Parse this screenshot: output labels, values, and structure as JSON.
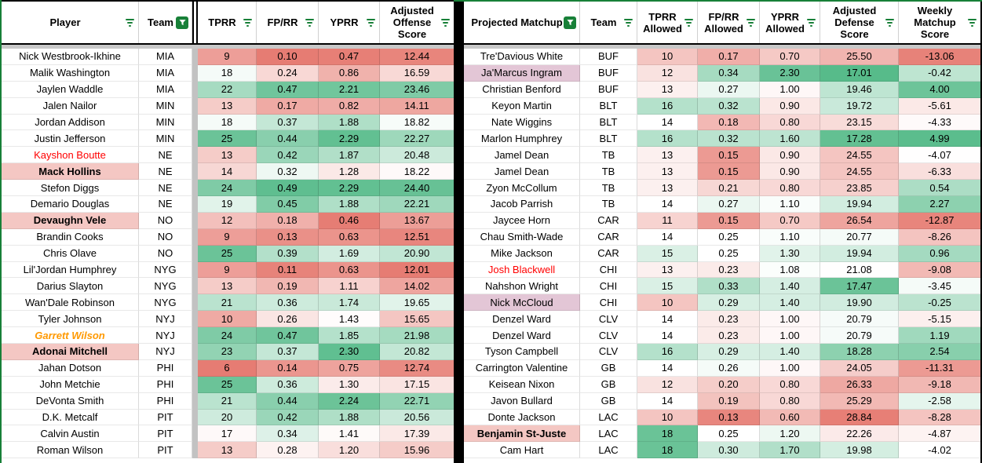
{
  "colors": {
    "scale_red": "#e67c73",
    "scale_white": "#ffffff",
    "scale_green": "#57bb8a",
    "highlight_pink": "#f4c7c3",
    "highlight_mauve": "#e3c6d6",
    "name_red_text": "#ff0000",
    "name_orange_text": "#ff9900",
    "filter_green": "#188038"
  },
  "left_table": {
    "columns": [
      {
        "label": "Player",
        "filter": "lines"
      },
      {
        "label": "Team",
        "filter": "active"
      },
      {
        "label": "TPRR",
        "filter": "lines"
      },
      {
        "label": "FP/RR",
        "filter": "lines"
      },
      {
        "label": "YPRR",
        "filter": "lines"
      },
      {
        "label": "Adjusted Offense Score",
        "filter": "lines"
      }
    ],
    "scales": {
      "tprr": {
        "min": 6,
        "mid": 17.5,
        "max": 26
      },
      "fprr": {
        "min": 0.1,
        "mid": 0.3,
        "max": 0.5
      },
      "yprr": {
        "min": 0.45,
        "mid": 1.45,
        "max": 2.35
      },
      "adj": {
        "min": 12,
        "mid": 18.5,
        "max": 25
      }
    },
    "rows": [
      {
        "player": "Nick Westbrook-Ikhine",
        "style": "",
        "team": "MIA",
        "tprr": "9",
        "fprr": "0.10",
        "yprr": "0.47",
        "adj": "12.44"
      },
      {
        "player": "Malik Washington",
        "style": "",
        "team": "MIA",
        "tprr": "18",
        "fprr": "0.24",
        "yprr": "0.86",
        "adj": "16.59"
      },
      {
        "player": "Jaylen Waddle",
        "style": "",
        "team": "MIA",
        "tprr": "22",
        "fprr": "0.47",
        "yprr": "2.21",
        "adj": "23.46"
      },
      {
        "player": "Jalen Nailor",
        "style": "",
        "team": "MIN",
        "tprr": "13",
        "fprr": "0.17",
        "yprr": "0.82",
        "adj": "14.11"
      },
      {
        "player": "Jordan Addison",
        "style": "",
        "team": "MIN",
        "tprr": "18",
        "fprr": "0.37",
        "yprr": "1.88",
        "adj": "18.82"
      },
      {
        "player": "Justin Jefferson",
        "style": "",
        "team": "MIN",
        "tprr": "25",
        "fprr": "0.44",
        "yprr": "2.29",
        "adj": "22.27"
      },
      {
        "player": "Kayshon Boutte",
        "style": "red",
        "team": "NE",
        "tprr": "13",
        "fprr": "0.42",
        "yprr": "1.87",
        "adj": "20.48"
      },
      {
        "player": "Mack Hollins",
        "style": "pink",
        "team": "NE",
        "tprr": "14",
        "fprr": "0.32",
        "yprr": "1.28",
        "adj": "18.22"
      },
      {
        "player": "Stefon Diggs",
        "style": "",
        "team": "NE",
        "tprr": "24",
        "fprr": "0.49",
        "yprr": "2.29",
        "adj": "24.40"
      },
      {
        "player": "Demario Douglas",
        "style": "",
        "team": "NE",
        "tprr": "19",
        "fprr": "0.45",
        "yprr": "1.88",
        "adj": "22.21"
      },
      {
        "player": "Devaughn Vele",
        "style": "pink",
        "team": "NO",
        "tprr": "12",
        "fprr": "0.18",
        "yprr": "0.46",
        "adj": "13.67"
      },
      {
        "player": "Brandin Cooks",
        "style": "",
        "team": "NO",
        "tprr": "9",
        "fprr": "0.13",
        "yprr": "0.63",
        "adj": "12.51"
      },
      {
        "player": "Chris Olave",
        "style": "",
        "team": "NO",
        "tprr": "25",
        "fprr": "0.39",
        "yprr": "1.69",
        "adj": "20.90"
      },
      {
        "player": "Lil'Jordan Humphrey",
        "style": "",
        "team": "NYG",
        "tprr": "9",
        "fprr": "0.11",
        "yprr": "0.63",
        "adj": "12.01"
      },
      {
        "player": "Darius Slayton",
        "style": "",
        "team": "NYG",
        "tprr": "13",
        "fprr": "0.19",
        "yprr": "1.11",
        "adj": "14.02"
      },
      {
        "player": "Wan'Dale Robinson",
        "style": "",
        "team": "NYG",
        "tprr": "21",
        "fprr": "0.36",
        "yprr": "1.74",
        "adj": "19.65"
      },
      {
        "player": "Tyler Johnson",
        "style": "",
        "team": "NYJ",
        "tprr": "10",
        "fprr": "0.26",
        "yprr": "1.43",
        "adj": "15.65"
      },
      {
        "player": "Garrett Wilson",
        "style": "orange",
        "team": "NYJ",
        "tprr": "24",
        "fprr": "0.47",
        "yprr": "1.85",
        "adj": "21.98"
      },
      {
        "player": "Adonai Mitchell",
        "style": "pink",
        "team": "NYJ",
        "tprr": "23",
        "fprr": "0.37",
        "yprr": "2.30",
        "adj": "20.82"
      },
      {
        "player": "Jahan Dotson",
        "style": "",
        "team": "PHI",
        "tprr": "6",
        "fprr": "0.14",
        "yprr": "0.75",
        "adj": "12.74"
      },
      {
        "player": "John Metchie",
        "style": "",
        "team": "PHI",
        "tprr": "25",
        "fprr": "0.36",
        "yprr": "1.30",
        "adj": "17.15"
      },
      {
        "player": "DeVonta Smith",
        "style": "",
        "team": "PHI",
        "tprr": "21",
        "fprr": "0.44",
        "yprr": "2.24",
        "adj": "22.71"
      },
      {
        "player": "D.K. Metcalf",
        "style": "",
        "team": "PIT",
        "tprr": "20",
        "fprr": "0.42",
        "yprr": "1.88",
        "adj": "20.56"
      },
      {
        "player": "Calvin Austin",
        "style": "",
        "team": "PIT",
        "tprr": "17",
        "fprr": "0.34",
        "yprr": "1.41",
        "adj": "17.39"
      },
      {
        "player": "Roman Wilson",
        "style": "",
        "team": "PIT",
        "tprr": "13",
        "fprr": "0.28",
        "yprr": "1.20",
        "adj": "15.96"
      }
    ],
    "partial_row_colors": [
      "#ffffff",
      "#ffffff",
      "#f6cfcb",
      "#e3f2ea",
      "#f8dcd9",
      "#f7d4d0"
    ]
  },
  "right_table": {
    "columns": [
      {
        "label": "Projected Matchup",
        "filter": "active"
      },
      {
        "label": "Team",
        "filter": "lines"
      },
      {
        "label": "TPRR Allowed",
        "filter": "lines"
      },
      {
        "label": "FP/RR Allowed",
        "filter": "lines"
      },
      {
        "label": "YPRR Allowed",
        "filter": "lines"
      },
      {
        "label": "Adjusted Defense Score",
        "filter": "lines"
      },
      {
        "label": "Weekly Matchup Score",
        "filter": "lines"
      }
    ],
    "scales": {
      "tprr": {
        "min": 5,
        "mid": 14,
        "max": 18.5
      },
      "fprr": {
        "min": 0.12,
        "mid": 0.25,
        "max": 0.42
      },
      "yprr": {
        "min": 0.2,
        "mid": 1.05,
        "max": 2.45
      },
      "adj": {
        "min": 17,
        "mid": 21,
        "max": 29,
        "invert": true
      },
      "weekly": {
        "min": -13.5,
        "mid": -4,
        "max": 5.2
      }
    },
    "rows": [
      {
        "player": "Tre'Davious White",
        "style": "",
        "team": "BUF",
        "tprr": "10",
        "fprr": "0.17",
        "yprr": "0.70",
        "adj": "25.50",
        "weekly": "-13.06"
      },
      {
        "player": "Ja'Marcus Ingram",
        "style": "mauve",
        "team": "BUF",
        "tprr": "12",
        "fprr": "0.34",
        "yprr": "2.30",
        "adj": "17.01",
        "weekly": "-0.42"
      },
      {
        "player": "Christian Benford",
        "style": "",
        "team": "BUF",
        "tprr": "13",
        "fprr": "0.27",
        "yprr": "1.00",
        "adj": "19.46",
        "weekly": "4.00"
      },
      {
        "player": "Keyon Martin",
        "style": "",
        "team": "BLT",
        "tprr": "16",
        "fprr": "0.32",
        "yprr": "0.90",
        "adj": "19.72",
        "weekly": "-5.61"
      },
      {
        "player": "Nate Wiggins",
        "style": "",
        "team": "BLT",
        "tprr": "14",
        "fprr": "0.18",
        "yprr": "0.80",
        "adj": "23.15",
        "weekly": "-4.33"
      },
      {
        "player": "Marlon Humphrey",
        "style": "",
        "team": "BLT",
        "tprr": "16",
        "fprr": "0.32",
        "yprr": "1.60",
        "adj": "17.28",
        "weekly": "4.99"
      },
      {
        "player": "Jamel Dean",
        "style": "",
        "team": "TB",
        "tprr": "13",
        "fprr": "0.15",
        "yprr": "0.90",
        "adj": "24.55",
        "weekly": "-4.07"
      },
      {
        "player": "Jamel Dean",
        "style": "",
        "team": "TB",
        "tprr": "13",
        "fprr": "0.15",
        "yprr": "0.90",
        "adj": "24.55",
        "weekly": "-6.33"
      },
      {
        "player": "Zyon McCollum",
        "style": "",
        "team": "TB",
        "tprr": "13",
        "fprr": "0.21",
        "yprr": "0.80",
        "adj": "23.85",
        "weekly": "0.54"
      },
      {
        "player": "Jacob Parrish",
        "style": "",
        "team": "TB",
        "tprr": "14",
        "fprr": "0.27",
        "yprr": "1.10",
        "adj": "19.94",
        "weekly": "2.27"
      },
      {
        "player": "Jaycee Horn",
        "style": "",
        "team": "CAR",
        "tprr": "11",
        "fprr": "0.15",
        "yprr": "0.70",
        "adj": "26.54",
        "weekly": "-12.87"
      },
      {
        "player": "Chau Smith-Wade",
        "style": "",
        "team": "CAR",
        "tprr": "14",
        "fprr": "0.25",
        "yprr": "1.10",
        "adj": "20.77",
        "weekly": "-8.26"
      },
      {
        "player": "Mike Jackson",
        "style": "",
        "team": "CAR",
        "tprr": "15",
        "fprr": "0.25",
        "yprr": "1.30",
        "adj": "19.94",
        "weekly": "0.96"
      },
      {
        "player": "Josh Blackwell",
        "style": "red",
        "team": "CHI",
        "tprr": "13",
        "fprr": "0.23",
        "yprr": "1.08",
        "adj": "21.08",
        "weekly": "-9.08"
      },
      {
        "player": "Nahshon Wright",
        "style": "",
        "team": "CHI",
        "tprr": "15",
        "fprr": "0.33",
        "yprr": "1.40",
        "adj": "17.47",
        "weekly": "-3.45"
      },
      {
        "player": "Nick McCloud",
        "style": "mauve",
        "team": "CHI",
        "tprr": "10",
        "fprr": "0.29",
        "yprr": "1.40",
        "adj": "19.90",
        "weekly": "-0.25"
      },
      {
        "player": "Denzel Ward",
        "style": "",
        "team": "CLV",
        "tprr": "14",
        "fprr": "0.23",
        "yprr": "1.00",
        "adj": "20.79",
        "weekly": "-5.15"
      },
      {
        "player": "Denzel Ward",
        "style": "",
        "team": "CLV",
        "tprr": "14",
        "fprr": "0.23",
        "yprr": "1.00",
        "adj": "20.79",
        "weekly": "1.19"
      },
      {
        "player": "Tyson Campbell",
        "style": "",
        "team": "CLV",
        "tprr": "16",
        "fprr": "0.29",
        "yprr": "1.40",
        "adj": "18.28",
        "weekly": "2.54"
      },
      {
        "player": "Carrington Valentine",
        "style": "",
        "team": "GB",
        "tprr": "14",
        "fprr": "0.26",
        "yprr": "1.00",
        "adj": "24.05",
        "weekly": "-11.31"
      },
      {
        "player": "Keisean Nixon",
        "style": "",
        "team": "GB",
        "tprr": "12",
        "fprr": "0.20",
        "yprr": "0.80",
        "adj": "26.33",
        "weekly": "-9.18"
      },
      {
        "player": "Javon Bullard",
        "style": "",
        "team": "GB",
        "tprr": "14",
        "fprr": "0.19",
        "yprr": "0.80",
        "adj": "25.29",
        "weekly": "-2.58"
      },
      {
        "player": "Donte Jackson",
        "style": "",
        "team": "LAC",
        "tprr": "10",
        "fprr": "0.13",
        "yprr": "0.60",
        "adj": "28.84",
        "weekly": "-8.28"
      },
      {
        "player": "Benjamin St-Juste",
        "style": "pink",
        "team": "LAC",
        "tprr": "18",
        "fprr": "0.25",
        "yprr": "1.20",
        "adj": "22.26",
        "weekly": "-4.87"
      },
      {
        "player": "Cam Hart",
        "style": "",
        "team": "LAC",
        "tprr": "18",
        "fprr": "0.30",
        "yprr": "1.70",
        "adj": "19.98",
        "weekly": "-4.02"
      }
    ],
    "partial_row_colors": [
      "#ffffff",
      "#ffffff",
      "#f4bcb6",
      "#f0f8f4",
      "#ec8c82",
      "#ee9a91",
      "#fae3e1"
    ]
  }
}
